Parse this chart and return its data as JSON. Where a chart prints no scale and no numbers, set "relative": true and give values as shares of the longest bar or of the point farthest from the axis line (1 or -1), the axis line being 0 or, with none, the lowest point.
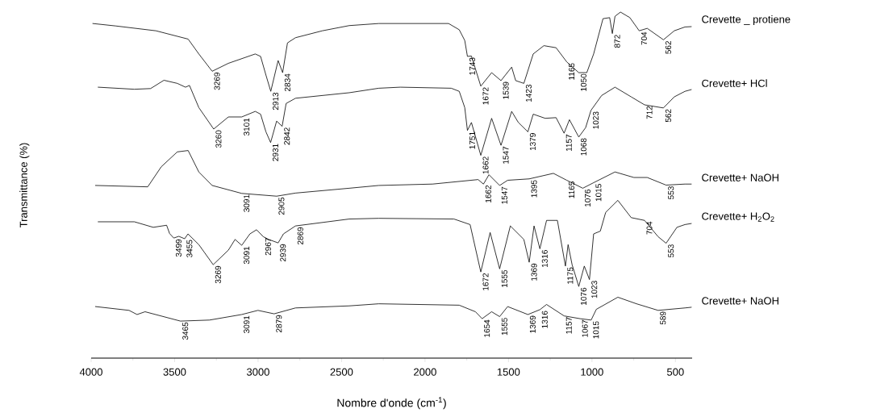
{
  "chart_data": {
    "type": "line",
    "relative": true,
    "xlabel": "Nombre d'onde (cm$^{-1}$)",
    "ylabel": "Transmittance (%)",
    "xlim": [
      4000,
      400
    ],
    "xticks": [
      4000,
      3500,
      3000,
      2500,
      2000,
      1500,
      1000,
      500
    ],
    "series": [
      {
        "name": "Crevette _ protiene",
        "color": "#000000",
        "x": [
          3990,
          3854,
          3612,
          3419,
          3355,
          3275,
          3178,
          3017,
          2985,
          2953,
          2924,
          2880,
          2853,
          2824,
          2776,
          2615,
          2454,
          2277,
          1859,
          1795,
          1762,
          1746,
          1722,
          1666,
          1601,
          1545,
          1481,
          1457,
          1408,
          1352,
          1288,
          1215,
          1151,
          1079,
          1031,
          990,
          934,
          894,
          878,
          862,
          829,
          773,
          717,
          669,
          572,
          507,
          443,
          405
        ],
        "values": [
          0.967,
          0.96,
          0.946,
          0.922,
          0.879,
          0.829,
          0.852,
          0.879,
          0.872,
          0.818,
          0.771,
          0.86,
          0.825,
          0.911,
          0.926,
          0.946,
          0.961,
          0.967,
          0.967,
          0.949,
          0.918,
          0.872,
          0.873,
          0.786,
          0.825,
          0.802,
          0.841,
          0.802,
          0.794,
          0.879,
          0.903,
          0.897,
          0.856,
          0.825,
          0.825,
          0.879,
          0.981,
          0.984,
          0.938,
          0.988,
          1.0,
          0.984,
          0.946,
          0.953,
          0.92,
          0.946,
          0.957,
          0.958
        ]
      },
      {
        "name": "Crevette+ HCl",
        "color": "#000000",
        "x": [
          3958,
          3741,
          3644,
          3564,
          3484,
          3435,
          3411,
          3355,
          3266,
          3178,
          3098,
          3017,
          2985,
          2953,
          2925,
          2889,
          2856,
          2832,
          2776,
          2454,
          2277,
          2148,
          1843,
          1795,
          1762,
          1746,
          1722,
          1666,
          1601,
          1545,
          1481,
          1441,
          1384,
          1352,
          1280,
          1215,
          1167,
          1135,
          1079,
          1038,
          1006,
          942,
          862,
          765,
          685,
          572,
          507,
          443,
          405
        ],
        "values": [
          0.783,
          0.777,
          0.779,
          0.803,
          0.794,
          0.783,
          0.788,
          0.724,
          0.662,
          0.697,
          0.697,
          0.713,
          0.705,
          0.654,
          0.623,
          0.685,
          0.67,
          0.736,
          0.751,
          0.767,
          0.78,
          0.783,
          0.78,
          0.771,
          0.724,
          0.658,
          0.681,
          0.586,
          0.693,
          0.615,
          0.713,
          0.681,
          0.654,
          0.705,
          0.693,
          0.695,
          0.65,
          0.689,
          0.639,
          0.666,
          0.716,
          0.759,
          0.783,
          0.755,
          0.732,
          0.723,
          0.755,
          0.771,
          0.776
        ]
      },
      {
        "name": "Crevette+ NaOH",
        "color": "#000000",
        "x": [
          3974,
          3661,
          3580,
          3484,
          3419,
          3355,
          3275,
          3098,
          2889,
          2776,
          2454,
          2277,
          1955,
          1682,
          1650,
          1617,
          1553,
          1505,
          1376,
          1231,
          1151,
          1055,
          990,
          862,
          749,
          669,
          556,
          443,
          405
        ],
        "values": [
          0.499,
          0.495,
          0.553,
          0.596,
          0.6,
          0.538,
          0.499,
          0.476,
          0.468,
          0.477,
          0.491,
          0.499,
          0.503,
          0.516,
          0.503,
          0.53,
          0.499,
          0.514,
          0.518,
          0.534,
          0.514,
          0.491,
          0.507,
          0.538,
          0.522,
          0.522,
          0.5,
          0.503,
          0.503
        ]
      },
      {
        "name": "Crevette+ H$_{2}$O$_{2}$",
        "color": "#000000",
        "x": [
          3958,
          3741,
          3628,
          3548,
          3530,
          3505,
          3475,
          3440,
          3420,
          3355,
          3269,
          3178,
          3138,
          3098,
          3049,
          3009,
          2969,
          2937,
          2880,
          2848,
          2776,
          2454,
          2277,
          1827,
          1730,
          1666,
          1610,
          1553,
          1489,
          1408,
          1376,
          1347,
          1312,
          1272,
          1207,
          1159,
          1143,
          1119,
          1079,
          1046,
          1015,
          990,
          950,
          918,
          845,
          765,
          685,
          604,
          556,
          491,
          443,
          405
        ],
        "values": [
          0.394,
          0.394,
          0.378,
          0.384,
          0.36,
          0.347,
          0.352,
          0.345,
          0.359,
          0.328,
          0.27,
          0.312,
          0.343,
          0.326,
          0.359,
          0.371,
          0.351,
          0.343,
          0.333,
          0.359,
          0.382,
          0.402,
          0.404,
          0.402,
          0.386,
          0.249,
          0.363,
          0.258,
          0.382,
          0.343,
          0.277,
          0.382,
          0.316,
          0.398,
          0.398,
          0.266,
          0.328,
          0.27,
          0.207,
          0.266,
          0.227,
          0.359,
          0.367,
          0.421,
          0.456,
          0.406,
          0.398,
          0.351,
          0.332,
          0.378,
          0.386,
          0.389
        ]
      },
      {
        "name": "Crevette+ NaOH",
        "color": "#000000",
        "x": [
          3974,
          3773,
          3725,
          3677,
          3465,
          3291,
          3098,
          3001,
          2904,
          2776,
          2454,
          2277,
          1795,
          1698,
          1658,
          1601,
          1553,
          1505,
          1384,
          1312,
          1272,
          1167,
          1071,
          1005,
          974,
          845,
          733,
          604,
          443,
          405
        ],
        "values": [
          0.149,
          0.138,
          0.126,
          0.134,
          0.107,
          0.11,
          0.126,
          0.138,
          0.128,
          0.145,
          0.151,
          0.157,
          0.153,
          0.134,
          0.114,
          0.134,
          0.12,
          0.149,
          0.126,
          0.14,
          0.155,
          0.122,
          0.114,
          0.11,
          0.141,
          0.176,
          0.157,
          0.138,
          0.145,
          0.147
        ]
      }
    ],
    "annotations": [
      {
        "text": "3269",
        "x": 3275,
        "y": 0.829
      },
      {
        "text": "2913",
        "x": 2924,
        "y": 0.771
      },
      {
        "text": "2834",
        "x": 2853,
        "y": 0.825
      },
      {
        "text": "1743",
        "x": 1746,
        "y": 0.872
      },
      {
        "text": "1672",
        "x": 1666,
        "y": 0.786
      },
      {
        "text": "1539",
        "x": 1545,
        "y": 0.802
      },
      {
        "text": "1423",
        "x": 1408,
        "y": 0.794
      },
      {
        "text": "1165",
        "x": 1151,
        "y": 0.856
      },
      {
        "text": "1050",
        "x": 1079,
        "y": 0.825
      },
      {
        "text": "872",
        "x": 878,
        "y": 0.938
      },
      {
        "text": "704",
        "x": 717,
        "y": 0.946
      },
      {
        "text": "562",
        "x": 572,
        "y": 0.92
      },
      {
        "text": "3260",
        "x": 3266,
        "y": 0.662
      },
      {
        "text": "3101",
        "x": 3098,
        "y": 0.697
      },
      {
        "text": "2931",
        "x": 2925,
        "y": 0.623
      },
      {
        "text": "2842",
        "x": 2856,
        "y": 0.67
      },
      {
        "text": "1751",
        "x": 1746,
        "y": 0.658
      },
      {
        "text": "1662",
        "x": 1666,
        "y": 0.586
      },
      {
        "text": "1547",
        "x": 1545,
        "y": 0.615
      },
      {
        "text": "1379",
        "x": 1384,
        "y": 0.654
      },
      {
        "text": "1157",
        "x": 1167,
        "y": 0.65
      },
      {
        "text": "1068",
        "x": 1079,
        "y": 0.639
      },
      {
        "text": "1023",
        "x": 1006,
        "y": 0.716
      },
      {
        "text": "712",
        "x": 685,
        "y": 0.732
      },
      {
        "text": "562",
        "x": 572,
        "y": 0.723
      },
      {
        "text": "3091",
        "x": 3098,
        "y": 0.476
      },
      {
        "text": "2905",
        "x": 2889,
        "y": 0.468
      },
      {
        "text": "1662",
        "x": 1650,
        "y": 0.503
      },
      {
        "text": "1547",
        "x": 1553,
        "y": 0.499
      },
      {
        "text": "1395",
        "x": 1376,
        "y": 0.518
      },
      {
        "text": "1165",
        "x": 1151,
        "y": 0.514
      },
      {
        "text": "1076",
        "x": 1055,
        "y": 0.491
      },
      {
        "text": "1015",
        "x": 990,
        "y": 0.507
      },
      {
        "text": "553",
        "x": 556,
        "y": 0.5
      },
      {
        "text": "3499",
        "x": 3505,
        "y": 0.347
      },
      {
        "text": "3455",
        "x": 3440,
        "y": 0.345
      },
      {
        "text": "3269",
        "x": 3269,
        "y": 0.27
      },
      {
        "text": "3091",
        "x": 3098,
        "y": 0.326
      },
      {
        "text": "2967",
        "x": 2969,
        "y": 0.351
      },
      {
        "text": "2939",
        "x": 2880,
        "y": 0.333
      },
      {
        "text": "2869",
        "x": 2776,
        "y": 0.382
      },
      {
        "text": "1672",
        "x": 1666,
        "y": 0.249
      },
      {
        "text": "1555",
        "x": 1553,
        "y": 0.258
      },
      {
        "text": "1369",
        "x": 1376,
        "y": 0.277
      },
      {
        "text": "1316",
        "x": 1312,
        "y": 0.316
      },
      {
        "text": "1175",
        "x": 1159,
        "y": 0.266
      },
      {
        "text": "1076",
        "x": 1079,
        "y": 0.207
      },
      {
        "text": "1023",
        "x": 1015,
        "y": 0.227
      },
      {
        "text": "704",
        "x": 685,
        "y": 0.398
      },
      {
        "text": "553",
        "x": 556,
        "y": 0.332
      },
      {
        "text": "3465",
        "x": 3465,
        "y": 0.107
      },
      {
        "text": "3091",
        "x": 3098,
        "y": 0.126
      },
      {
        "text": "2879",
        "x": 2904,
        "y": 0.128
      },
      {
        "text": "1654",
        "x": 1658,
        "y": 0.114
      },
      {
        "text": "1555",
        "x": 1553,
        "y": 0.12
      },
      {
        "text": "1369",
        "x": 1384,
        "y": 0.126
      },
      {
        "text": "1316",
        "x": 1312,
        "y": 0.14
      },
      {
        "text": "1157",
        "x": 1167,
        "y": 0.122
      },
      {
        "text": "1067",
        "x": 1071,
        "y": 0.114
      },
      {
        "text": "1015",
        "x": 1005,
        "y": 0.11
      },
      {
        "text": "589",
        "x": 604,
        "y": 0.138
      }
    ]
  }
}
